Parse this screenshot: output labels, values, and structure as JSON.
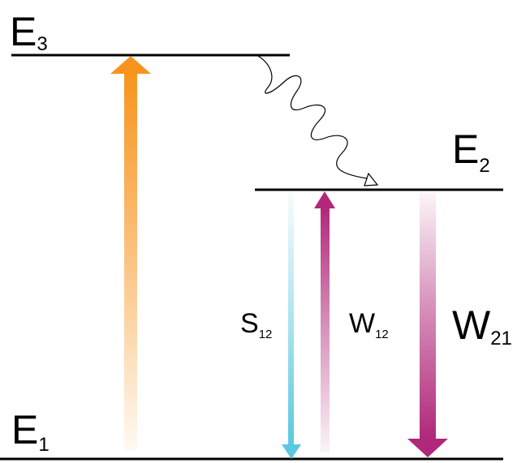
{
  "levels": {
    "e3": {
      "main": "E",
      "sub": "3"
    },
    "e2": {
      "main": "E",
      "sub": "2"
    },
    "e1": {
      "main": "E",
      "sub": "1"
    }
  },
  "transitions": {
    "s12": {
      "main": "S",
      "sub": "12"
    },
    "w12": {
      "main": "W",
      "sub": "12"
    },
    "w21": {
      "main": "W",
      "sub": "21"
    }
  },
  "colors": {
    "pump": "#F7941D",
    "s12": "#5BC8E0",
    "w": "#B0287A",
    "level": "#000000"
  }
}
